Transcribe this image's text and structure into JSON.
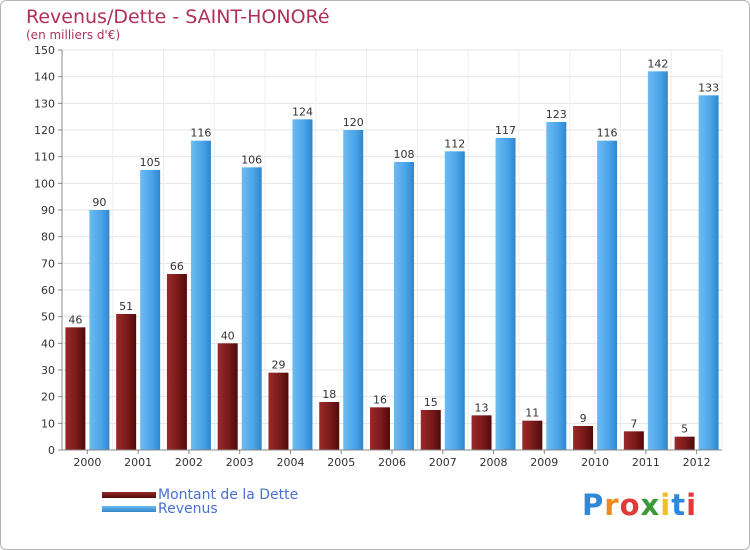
{
  "chart_data": {
    "type": "bar",
    "title": "Revenus/Dette - SAINT-HONORé",
    "subtitle": "(en milliers d'€)",
    "categories": [
      "2000",
      "2001",
      "2002",
      "2003",
      "2004",
      "2005",
      "2006",
      "2007",
      "2008",
      "2009",
      "2010",
      "2011",
      "2012"
    ],
    "series": [
      {
        "name": "Montant de la Dette",
        "values": [
          46,
          51,
          66,
          40,
          29,
          18,
          16,
          15,
          13,
          11,
          9,
          7,
          5
        ],
        "color": "#7a1a1a"
      },
      {
        "name": "Revenus",
        "values": [
          90,
          105,
          116,
          106,
          124,
          120,
          108,
          112,
          117,
          123,
          116,
          142,
          133
        ],
        "color": "#4aa3e8"
      }
    ],
    "ylim": [
      0,
      150
    ],
    "yticks": [
      0,
      10,
      20,
      30,
      40,
      50,
      60,
      70,
      80,
      90,
      100,
      110,
      120,
      130,
      140,
      150
    ],
    "xlabel": "",
    "ylabel": "",
    "grid": true,
    "legend_position": "bottom-left"
  },
  "logo": {
    "text": "Proxiti",
    "letters": [
      "P",
      "r",
      "o",
      "x",
      "i",
      "t",
      "i"
    ],
    "colors": [
      "#2e8ad8",
      "#f08a1c",
      "#e03a3a",
      "#3a9a3a",
      "#f0c020",
      "#2e8ad8",
      "#e03a3a"
    ]
  }
}
